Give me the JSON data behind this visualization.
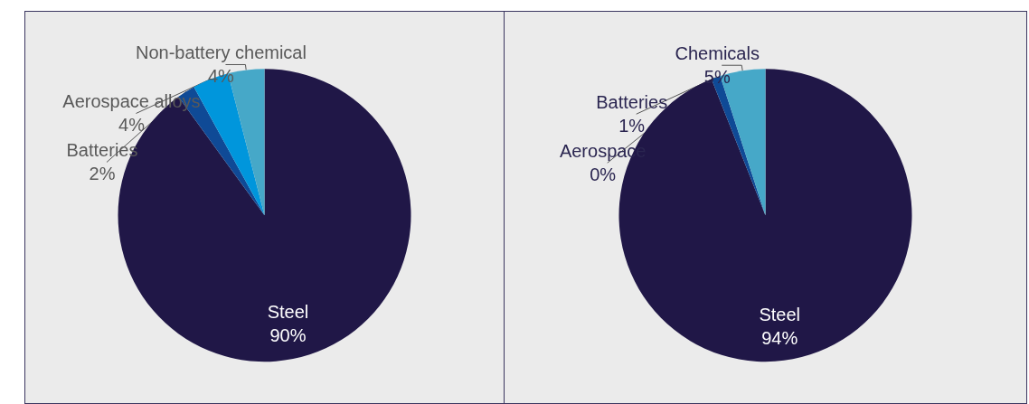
{
  "chart_data": [
    {
      "type": "pie",
      "categories": [
        "Steel",
        "Batteries",
        "Aerospace alloys",
        "Non-battery chemical"
      ],
      "values": [
        90,
        2,
        4,
        4
      ],
      "value_labels": [
        "90%",
        "2%",
        "4%",
        "4%"
      ],
      "colors": [
        "#201747",
        "#0f4a96",
        "#0096dc",
        "#46a8c8"
      ],
      "legend": false
    },
    {
      "type": "pie",
      "categories": [
        "Steel",
        "Aerospace",
        "Batteries",
        "Chemicals"
      ],
      "values": [
        94,
        0,
        1,
        5
      ],
      "value_labels": [
        "94%",
        "0%",
        "1%",
        "5%"
      ],
      "colors": [
        "#201747",
        "#1a3a80",
        "#0f4a96",
        "#46a8c8"
      ],
      "legend": false
    }
  ]
}
